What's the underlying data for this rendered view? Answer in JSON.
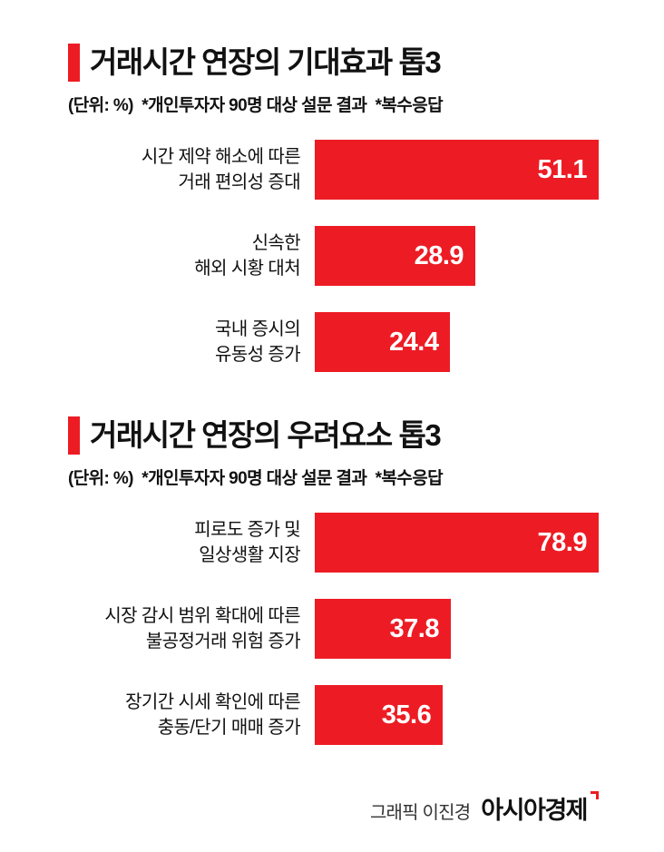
{
  "page": {
    "background": "#ffffff",
    "accent_color": "#ED1C24",
    "text_color": "#111111"
  },
  "chart_data": [
    {
      "type": "bar",
      "orientation": "horizontal",
      "title": "거래시간 연장의 기대효과 톱3",
      "subtitle": "(단위: %)  *개인투자자 90명 대상 설문 결과  *복수응답",
      "unit": "%",
      "categories": [
        "시간 제약 해소에 따른 거래 편의성 증대",
        "신속한 해외 시황 대처",
        "국내 증시의 유동성 증가"
      ],
      "categories_lines": [
        [
          "시간 제약 해소에 따른",
          "거래 편의성 증대"
        ],
        [
          "신속한",
          "해외 시황 대처"
        ],
        [
          "국내 증시의",
          "유동성 증가"
        ]
      ],
      "values": [
        51.1,
        28.9,
        24.4
      ],
      "xlim": [
        0,
        51.1
      ],
      "bar_color": "#ED1C24",
      "value_label_color": "#ffffff",
      "grid": false,
      "legend": false
    },
    {
      "type": "bar",
      "orientation": "horizontal",
      "title": "거래시간 연장의 우려요소 톱3",
      "subtitle": "(단위: %)  *개인투자자 90명 대상 설문 결과  *복수응답",
      "unit": "%",
      "categories": [
        "피로도 증가 및 일상생활 지장",
        "시장 감시 범위 확대에 따른 불공정거래 위험 증가",
        "장기간 시세 확인에 따른 충동/단기 매매 증가"
      ],
      "categories_lines": [
        [
          "피로도 증가 및",
          "일상생활 지장"
        ],
        [
          "시장 감시 범위 확대에 따른",
          "불공정거래 위험 증가"
        ],
        [
          "장기간 시세 확인에 따른",
          "충동/단기 매매 증가"
        ]
      ],
      "values": [
        78.9,
        37.8,
        35.6
      ],
      "xlim": [
        0,
        78.9
      ],
      "bar_color": "#ED1C24",
      "value_label_color": "#ffffff",
      "grid": false,
      "legend": false
    }
  ],
  "footer": {
    "credit": "그래픽 이진경",
    "brand": "아시아경제"
  }
}
